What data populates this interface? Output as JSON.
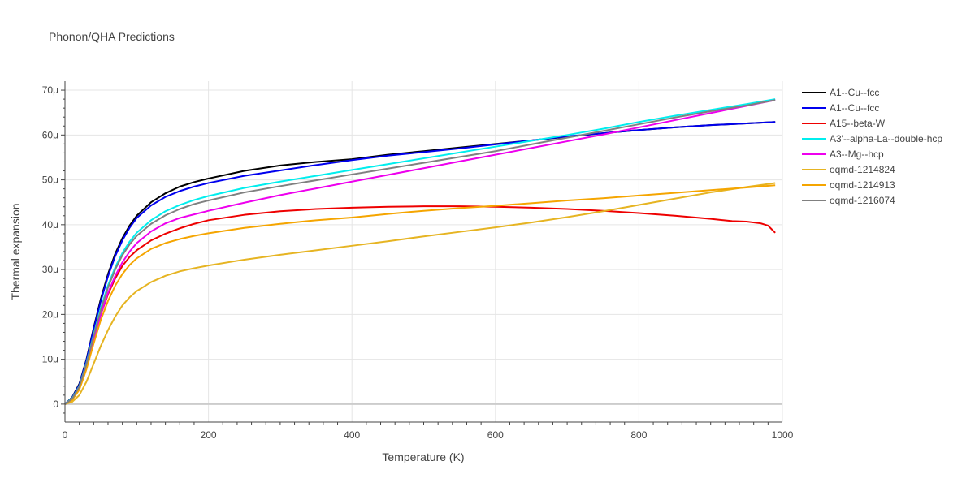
{
  "chart_data": {
    "type": "line",
    "title": "Phonon/QHA Predictions",
    "xlabel": "Temperature (K)",
    "ylabel": "Thermal expansion",
    "xlim": [
      0,
      1000
    ],
    "ylim": [
      -4,
      72
    ],
    "x_ticks": [
      0,
      200,
      400,
      600,
      800,
      1000
    ],
    "x_tick_labels": [
      "0",
      "200",
      "400",
      "600",
      "800",
      "1000"
    ],
    "y_ticks": [
      0,
      10,
      20,
      30,
      40,
      50,
      60,
      70
    ],
    "y_tick_labels": [
      "0",
      "10μ",
      "20μ",
      "30μ",
      "40μ",
      "50μ",
      "60μ",
      "70μ"
    ],
    "grid": true,
    "legend_position": "right",
    "series": [
      {
        "name": "A1--Cu--fcc",
        "color": "#000000",
        "x": [
          0,
          10,
          20,
          30,
          40,
          50,
          60,
          70,
          80,
          90,
          100,
          120,
          140,
          160,
          180,
          200,
          250,
          300,
          350,
          400,
          450,
          500,
          550,
          600,
          650,
          700,
          750,
          800,
          850,
          900,
          950,
          990
        ],
        "y": [
          0,
          1.5,
          4.5,
          10,
          17,
          23.5,
          29,
          33.5,
          37,
          39.8,
          42,
          45,
          47,
          48.5,
          49.5,
          50.3,
          52,
          53.2,
          54,
          54.6,
          55.6,
          56.4,
          57.2,
          58,
          58.8,
          59.6,
          60.4,
          61.1,
          61.7,
          62.2,
          62.6,
          62.9
        ]
      },
      {
        "name": "A1--Cu--fcc",
        "color": "#0000ee",
        "x": [
          0,
          10,
          20,
          30,
          40,
          50,
          60,
          70,
          80,
          90,
          100,
          120,
          140,
          160,
          180,
          200,
          250,
          300,
          350,
          400,
          450,
          500,
          550,
          600,
          650,
          700,
          750,
          800,
          850,
          900,
          950,
          990
        ],
        "y": [
          0,
          1.4,
          4.3,
          9.8,
          16.7,
          23,
          28.5,
          33,
          36.5,
          39.3,
          41.5,
          44.3,
          46.2,
          47.5,
          48.5,
          49.3,
          50.9,
          52.1,
          53.3,
          54.4,
          55.4,
          56.2,
          57,
          57.9,
          58.8,
          59.7,
          60.4,
          61.1,
          61.7,
          62.2,
          62.6,
          62.9
        ]
      },
      {
        "name": "A15--beta-W",
        "color": "#ee0000",
        "x": [
          0,
          10,
          20,
          30,
          40,
          50,
          60,
          70,
          80,
          90,
          100,
          120,
          140,
          160,
          180,
          200,
          250,
          300,
          350,
          400,
          450,
          500,
          550,
          600,
          650,
          700,
          750,
          800,
          850,
          900,
          930,
          950,
          970,
          980,
          990
        ],
        "y": [
          0,
          1,
          3.5,
          8.5,
          14.5,
          20,
          24.5,
          28,
          30.8,
          32.8,
          34.3,
          36.5,
          38,
          39.2,
          40.2,
          41,
          42.2,
          43,
          43.5,
          43.8,
          44,
          44.1,
          44.1,
          44,
          43.8,
          43.5,
          43.1,
          42.6,
          42,
          41.3,
          40.8,
          40.7,
          40.3,
          39.8,
          38.2
        ]
      },
      {
        "name": "A3'--alpha-La--double-hcp",
        "color": "#00eeee",
        "x": [
          0,
          10,
          20,
          30,
          40,
          50,
          60,
          70,
          80,
          90,
          100,
          120,
          140,
          160,
          180,
          200,
          250,
          300,
          350,
          400,
          450,
          500,
          550,
          600,
          650,
          700,
          750,
          800,
          850,
          900,
          950,
          990
        ],
        "y": [
          0,
          1.3,
          4,
          9.2,
          15.5,
          21.5,
          26.5,
          30.5,
          33.7,
          36.2,
          38.2,
          41,
          43,
          44.4,
          45.5,
          46.4,
          48.2,
          49.6,
          50.9,
          52.2,
          53.5,
          54.8,
          56.1,
          57.4,
          58.7,
          60,
          61.4,
          62.9,
          64.3,
          65.6,
          66.9,
          68
        ]
      },
      {
        "name": "A3--Mg--hcp",
        "color": "#ee00ee",
        "x": [
          0,
          10,
          20,
          30,
          40,
          50,
          60,
          70,
          80,
          90,
          100,
          120,
          140,
          160,
          180,
          200,
          250,
          300,
          350,
          400,
          450,
          500,
          550,
          600,
          650,
          700,
          750,
          800,
          850,
          900,
          950,
          990
        ],
        "y": [
          0,
          1.1,
          3.6,
          8.5,
          14.5,
          20,
          24.8,
          28.6,
          31.6,
          34,
          35.9,
          38.5,
          40.3,
          41.5,
          42.3,
          43.1,
          44.9,
          46.6,
          48.1,
          49.6,
          51.1,
          52.6,
          54.1,
          55.6,
          57.1,
          58.6,
          60.1,
          61.7,
          63.3,
          64.9,
          66.5,
          67.8
        ]
      },
      {
        "name": "oqmd-1214824",
        "color": "#e6b422",
        "x": [
          0,
          10,
          20,
          30,
          40,
          50,
          60,
          70,
          80,
          90,
          100,
          120,
          140,
          160,
          180,
          200,
          250,
          300,
          350,
          400,
          450,
          500,
          550,
          600,
          650,
          700,
          750,
          800,
          850,
          900,
          950,
          990
        ],
        "y": [
          0,
          0.5,
          2,
          5,
          9,
          13,
          16.5,
          19.5,
          22,
          23.8,
          25.2,
          27.2,
          28.6,
          29.6,
          30.3,
          30.9,
          32.2,
          33.3,
          34.3,
          35.3,
          36.3,
          37.4,
          38.4,
          39.4,
          40.5,
          41.7,
          43,
          44.4,
          45.8,
          47.2,
          48.4,
          49.3
        ]
      },
      {
        "name": "oqmd-1214913",
        "color": "#f5a500",
        "x": [
          0,
          10,
          20,
          30,
          40,
          50,
          60,
          70,
          80,
          90,
          100,
          120,
          140,
          160,
          180,
          200,
          250,
          300,
          350,
          400,
          450,
          500,
          550,
          600,
          650,
          700,
          750,
          800,
          850,
          900,
          950,
          990
        ],
        "y": [
          0,
          0.9,
          3.2,
          7.8,
          13.5,
          18.8,
          23,
          26.4,
          29,
          31,
          32.5,
          34.6,
          35.9,
          36.8,
          37.5,
          38.1,
          39.3,
          40.2,
          41,
          41.6,
          42.4,
          43.1,
          43.7,
          44.2,
          44.8,
          45.4,
          45.9,
          46.5,
          47.1,
          47.7,
          48.3,
          48.8
        ]
      },
      {
        "name": "oqmd-1216074",
        "color": "#808080",
        "x": [
          0,
          10,
          20,
          30,
          40,
          50,
          60,
          70,
          80,
          90,
          100,
          120,
          140,
          160,
          180,
          200,
          250,
          300,
          350,
          400,
          450,
          500,
          550,
          600,
          650,
          700,
          750,
          800,
          850,
          900,
          950,
          990
        ],
        "y": [
          0,
          1.2,
          3.9,
          9,
          15.2,
          21,
          26,
          30,
          33.2,
          35.6,
          37.5,
          40.2,
          42.1,
          43.5,
          44.6,
          45.4,
          47.2,
          48.6,
          49.9,
          51.2,
          52.5,
          53.8,
          55.1,
          56.4,
          57.9,
          59.4,
          60.9,
          62.4,
          63.9,
          65.3,
          66.6,
          67.8
        ]
      }
    ]
  }
}
